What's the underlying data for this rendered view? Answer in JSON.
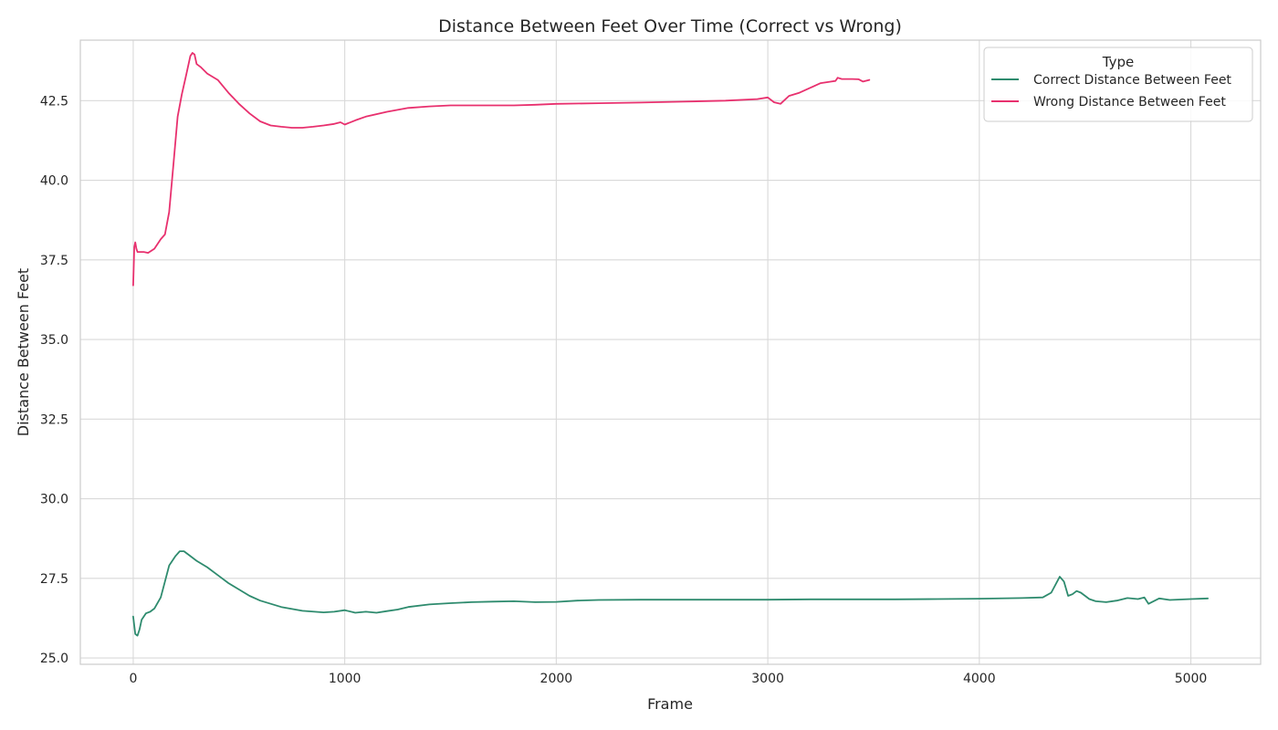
{
  "chart_data": {
    "type": "line",
    "title": "Distance Between Feet Over Time (Correct vs Wrong)",
    "xlabel": "Frame",
    "ylabel": "Distance Between Feet",
    "xlim": [
      -250,
      5330
    ],
    "ylim": [
      24.8,
      44.4
    ],
    "xticks": [
      0,
      1000,
      2000,
      3000,
      4000,
      5000
    ],
    "xtick_labels": [
      "0",
      "1000",
      "2000",
      "3000",
      "4000",
      "5000"
    ],
    "yticks": [
      25.0,
      27.5,
      30.0,
      32.5,
      35.0,
      37.5,
      40.0,
      42.5
    ],
    "ytick_labels": [
      "25.0",
      "27.5",
      "30.0",
      "32.5",
      "35.0",
      "37.5",
      "40.0",
      "42.5"
    ],
    "grid": true,
    "legend": {
      "title": "Type",
      "position": "top-right"
    },
    "series": [
      {
        "name": "Correct Distance Between Feet",
        "color": "#2e8b6e",
        "x": [
          0,
          10,
          20,
          30,
          40,
          60,
          80,
          100,
          130,
          150,
          170,
          200,
          220,
          240,
          260,
          300,
          350,
          400,
          450,
          500,
          550,
          600,
          700,
          800,
          900,
          950,
          1000,
          1050,
          1100,
          1150,
          1200,
          1250,
          1300,
          1400,
          1500,
          1600,
          1700,
          1800,
          1900,
          2000,
          2100,
          2200,
          2400,
          2600,
          2800,
          3000,
          3200,
          3400,
          3600,
          3800,
          4000,
          4200,
          4300,
          4340,
          4380,
          4400,
          4420,
          4440,
          4460,
          4480,
          4500,
          4520,
          4550,
          4600,
          4650,
          4700,
          4750,
          4780,
          4800,
          4850,
          4900,
          5000,
          5080
        ],
        "y": [
          26.3,
          25.75,
          25.7,
          25.9,
          26.2,
          26.4,
          26.45,
          26.55,
          26.9,
          27.4,
          27.9,
          28.2,
          28.35,
          28.35,
          28.25,
          28.05,
          27.85,
          27.6,
          27.35,
          27.15,
          26.95,
          26.8,
          26.6,
          26.48,
          26.43,
          26.45,
          26.5,
          26.42,
          26.45,
          26.42,
          26.47,
          26.52,
          26.6,
          26.68,
          26.72,
          26.75,
          26.77,
          26.78,
          26.75,
          26.76,
          26.8,
          26.82,
          26.83,
          26.83,
          26.83,
          26.83,
          26.84,
          26.84,
          26.84,
          26.85,
          26.86,
          26.88,
          26.9,
          27.05,
          27.55,
          27.4,
          26.95,
          27.0,
          27.1,
          27.05,
          26.95,
          26.85,
          26.78,
          26.75,
          26.8,
          26.88,
          26.85,
          26.9,
          26.7,
          26.87,
          26.82,
          26.85,
          26.87
        ]
      },
      {
        "name": "Wrong Distance Between Feet",
        "color": "#e8306e",
        "x": [
          0,
          5,
          10,
          15,
          20,
          30,
          50,
          70,
          100,
          130,
          150,
          170,
          190,
          210,
          230,
          250,
          270,
          280,
          290,
          300,
          320,
          350,
          400,
          450,
          500,
          550,
          600,
          650,
          700,
          750,
          800,
          850,
          900,
          950,
          980,
          1000,
          1050,
          1100,
          1200,
          1300,
          1400,
          1500,
          1600,
          1700,
          1800,
          1900,
          2000,
          2200,
          2400,
          2600,
          2800,
          2950,
          3000,
          3030,
          3060,
          3100,
          3150,
          3200,
          3250,
          3300,
          3320,
          3330,
          3350,
          3400,
          3430,
          3450,
          3480
        ],
        "y": [
          36.7,
          37.9,
          38.05,
          37.85,
          37.75,
          37.75,
          37.75,
          37.72,
          37.85,
          38.15,
          38.3,
          39.0,
          40.5,
          42.0,
          42.7,
          43.3,
          43.9,
          44.0,
          43.95,
          43.65,
          43.55,
          43.35,
          43.15,
          42.75,
          42.4,
          42.1,
          41.85,
          41.72,
          41.68,
          41.65,
          41.65,
          41.68,
          41.72,
          41.77,
          41.82,
          41.75,
          41.88,
          42.0,
          42.15,
          42.27,
          42.32,
          42.35,
          42.35,
          42.35,
          42.35,
          42.37,
          42.4,
          42.42,
          42.44,
          42.47,
          42.5,
          42.55,
          42.6,
          42.45,
          42.4,
          42.65,
          42.75,
          42.9,
          43.05,
          43.1,
          43.12,
          43.22,
          43.18,
          43.18,
          43.17,
          43.1,
          43.15
        ]
      }
    ]
  }
}
